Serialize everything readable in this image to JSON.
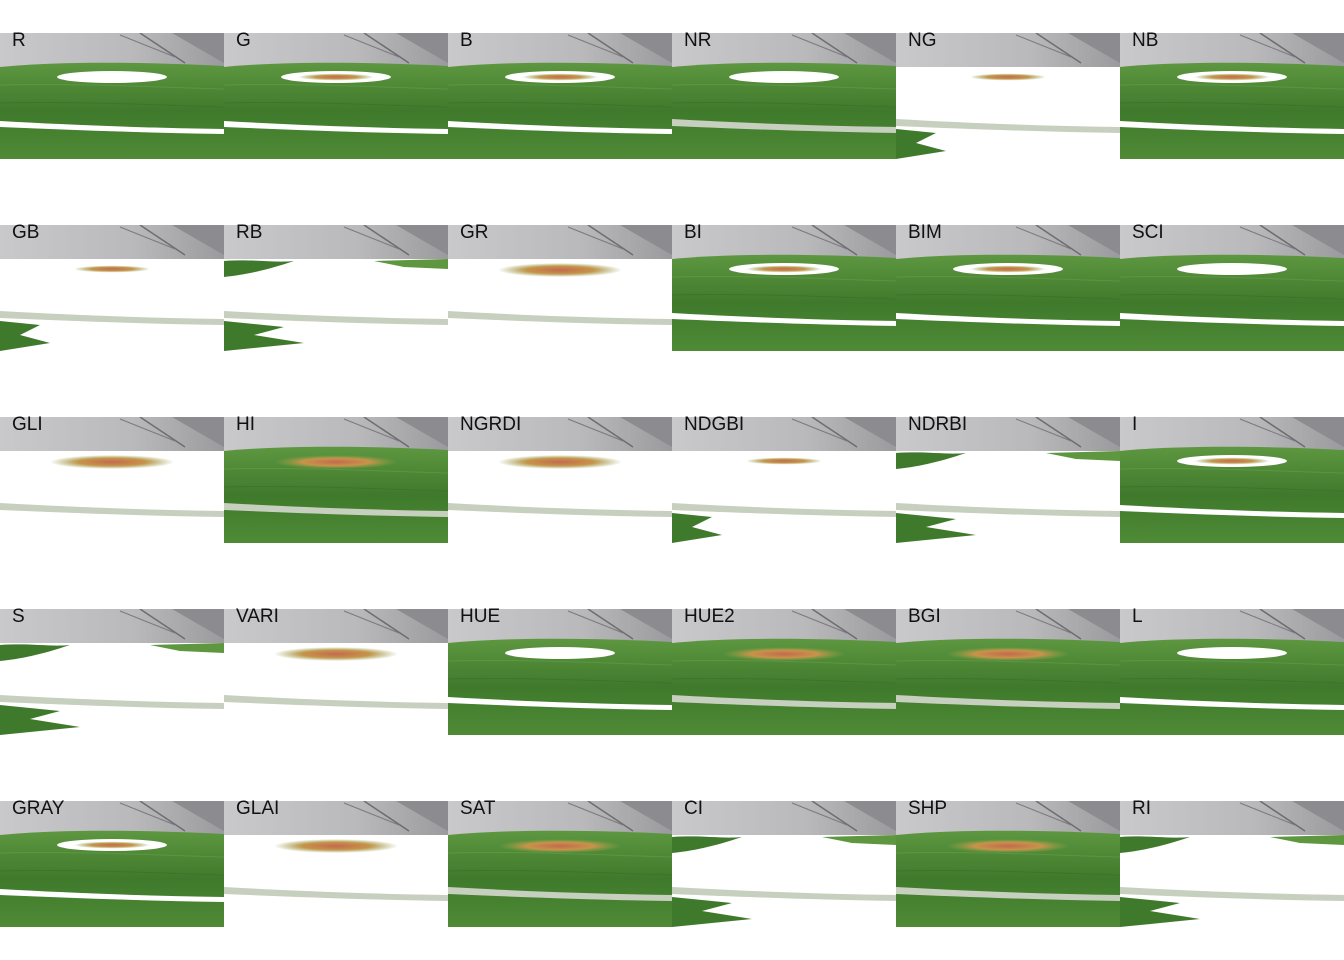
{
  "panels": [
    {
      "label": "R",
      "variant": "leaf-hole"
    },
    {
      "label": "G",
      "variant": "leaf-hole-spot"
    },
    {
      "label": "B",
      "variant": "leaf-hole-spot"
    },
    {
      "label": "NR",
      "variant": "leaf-hole-gray"
    },
    {
      "label": "NG",
      "variant": "mostly-white-spot"
    },
    {
      "label": "NB",
      "variant": "leaf-hole-spot"
    },
    {
      "label": "GB",
      "variant": "mostly-white-spot"
    },
    {
      "label": "RB",
      "variant": "mostly-white"
    },
    {
      "label": "GR",
      "variant": "white-lesion"
    },
    {
      "label": "BI",
      "variant": "leaf-hole-spot"
    },
    {
      "label": "BIM",
      "variant": "leaf-hole-spot"
    },
    {
      "label": "SCI",
      "variant": "leaf-hole"
    },
    {
      "label": "GLI",
      "variant": "white-lesion"
    },
    {
      "label": "HI",
      "variant": "leaf-full-lesion"
    },
    {
      "label": "NGRDI",
      "variant": "white-lesion"
    },
    {
      "label": "NDGBI",
      "variant": "mostly-white-spot"
    },
    {
      "label": "NDRBI",
      "variant": "mostly-white"
    },
    {
      "label": "I",
      "variant": "leaf-hole-spot"
    },
    {
      "label": "S",
      "variant": "mostly-white"
    },
    {
      "label": "VARI",
      "variant": "white-lesion"
    },
    {
      "label": "HUE",
      "variant": "leaf-hole"
    },
    {
      "label": "HUE2",
      "variant": "leaf-full-lesion"
    },
    {
      "label": "BGI",
      "variant": "leaf-full-lesion"
    },
    {
      "label": "L",
      "variant": "leaf-hole"
    },
    {
      "label": "GRAY",
      "variant": "leaf-hole-spot"
    },
    {
      "label": "GLAI",
      "variant": "white-lesion"
    },
    {
      "label": "SAT",
      "variant": "leaf-full-lesion"
    },
    {
      "label": "CI",
      "variant": "mostly-white"
    },
    {
      "label": "SHP",
      "variant": "leaf-full-lesion"
    },
    {
      "label": "RI",
      "variant": "mostly-white"
    }
  ],
  "colors": {
    "leaf_dark": "#3f7a2c",
    "leaf_light": "#5e9740",
    "background_gray": "#b9b9bc",
    "midrib": "#c7cfbf",
    "lesion_brown": "#c6944a",
    "lesion_red": "#c46a4e",
    "page": "#ffffff"
  }
}
